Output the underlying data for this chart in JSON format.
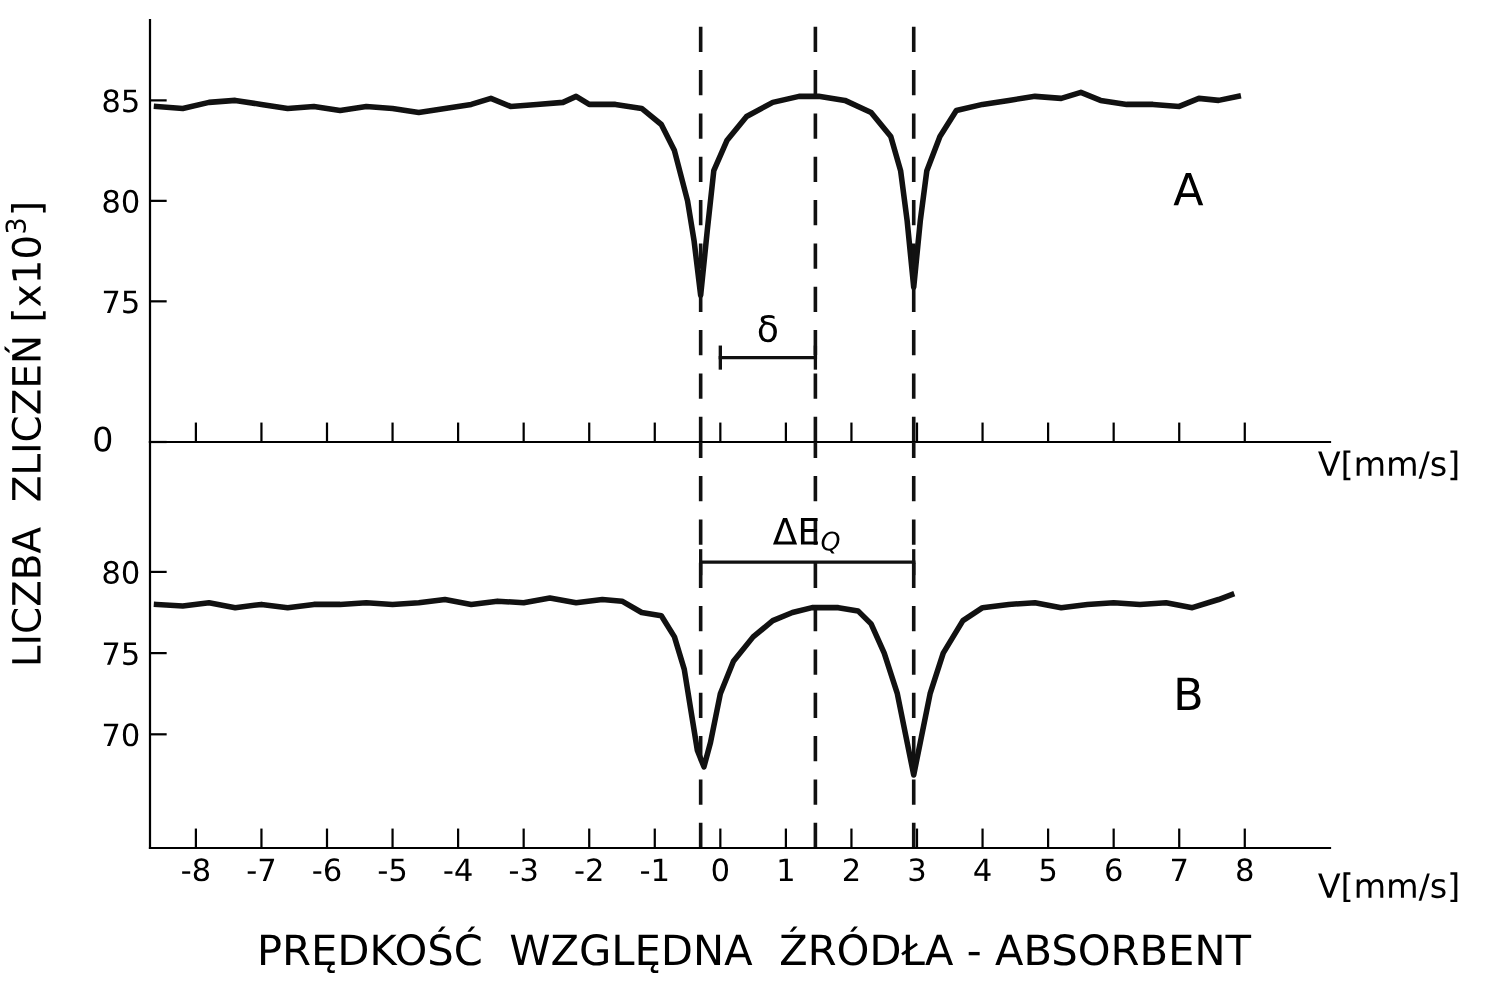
{
  "chart_data": [
    {
      "type": "line",
      "ylabel": "LICZBA  ZLICZEŃ [x10$^{3}$]",
      "xlabel": "V[mm/s]",
      "x": [
        -8.6,
        -8.2,
        -7.8,
        -7.4,
        -7.0,
        -6.6,
        -6.2,
        -5.8,
        -5.4,
        -5.0,
        -4.6,
        -4.2,
        -3.8,
        -3.5,
        -3.2,
        -2.8,
        -2.4,
        -2.2,
        -2.0,
        -1.6,
        -1.2,
        -0.9,
        -0.7,
        -0.5,
        -0.4,
        -0.3,
        -0.2,
        -0.1,
        0.1,
        0.4,
        0.8,
        1.2,
        1.5,
        1.9,
        2.3,
        2.6,
        2.75,
        2.85,
        2.95,
        3.05,
        3.15,
        3.35,
        3.6,
        4.0,
        4.4,
        4.8,
        5.2,
        5.5,
        5.8,
        6.2,
        6.6,
        7.0,
        7.3,
        7.6,
        7.9
      ],
      "series": [
        {
          "color": "#111111",
          "values": [
            84.7,
            84.6,
            84.9,
            85.0,
            84.8,
            84.6,
            84.7,
            84.5,
            84.7,
            84.6,
            84.4,
            84.6,
            84.8,
            85.1,
            84.7,
            84.8,
            84.9,
            85.2,
            84.8,
            84.8,
            84.6,
            83.8,
            82.5,
            80.0,
            78.0,
            75.3,
            78.5,
            81.5,
            83.0,
            84.2,
            84.9,
            85.2,
            85.2,
            85.0,
            84.4,
            83.2,
            81.5,
            79.0,
            75.7,
            79.0,
            81.5,
            83.2,
            84.5,
            84.8,
            85.0,
            85.2,
            85.1,
            85.4,
            85.0,
            84.8,
            84.8,
            84.7,
            85.1,
            85.0,
            85.2
          ]
        },
        {
          "name": "δ",
          "color": "#111111",
          "x": [
            0,
            1.45
          ],
          "values": [
            72.2,
            72.2
          ],
          "errors": [
            0.6,
            0.6
          ]
        }
      ],
      "xlim": [
        -8.7,
        9.3
      ],
      "xticks": [
        -8,
        -7,
        -6,
        -5,
        -4,
        -3,
        -2,
        -1,
        0,
        1,
        2,
        3,
        4,
        5,
        6,
        7,
        8
      ],
      "ylim": [
        68,
        89
      ],
      "yticks": [
        {
          "value": 68,
          "label": null
        },
        75,
        80,
        85
      ],
      "tick_labels": "y",
      "grid": false,
      "legend": false,
      "marker": "none",
      "line_style": "solid",
      "ref_lines": [
        {
          "axis": "x",
          "value": -0.3,
          "line_style": "dashed"
        },
        {
          "axis": "x",
          "value": 1.45,
          "line_style": "dashed"
        },
        {
          "axis": "x",
          "value": 2.95,
          "line_style": "dashed"
        }
      ],
      "annotations": [
        "A",
        "0"
      ]
    },
    {
      "type": "line",
      "xlabel": "V[mm/s]",
      "x": [
        -8.6,
        -8.2,
        -7.8,
        -7.4,
        -7.0,
        -6.6,
        -6.2,
        -5.8,
        -5.4,
        -5.0,
        -4.6,
        -4.2,
        -3.8,
        -3.4,
        -3.0,
        -2.6,
        -2.2,
        -1.8,
        -1.5,
        -1.2,
        -0.9,
        -0.7,
        -0.55,
        -0.45,
        -0.35,
        -0.25,
        -0.15,
        0.0,
        0.2,
        0.5,
        0.8,
        1.1,
        1.4,
        1.8,
        2.1,
        2.3,
        2.5,
        2.7,
        2.85,
        2.95,
        3.05,
        3.2,
        3.4,
        3.7,
        4.0,
        4.4,
        4.8,
        5.2,
        5.6,
        6.0,
        6.4,
        6.8,
        7.2,
        7.6,
        7.8
      ],
      "series": [
        {
          "color": "#111111",
          "values": [
            78.0,
            77.9,
            78.1,
            77.8,
            78.0,
            77.8,
            78.0,
            78.0,
            78.1,
            78.0,
            78.1,
            78.3,
            78.0,
            78.2,
            78.1,
            78.4,
            78.1,
            78.3,
            78.2,
            77.5,
            77.3,
            76.0,
            74.0,
            71.5,
            69.0,
            68.0,
            69.5,
            72.5,
            74.5,
            76.0,
            77.0,
            77.5,
            77.8,
            77.8,
            77.6,
            76.8,
            75.0,
            72.5,
            69.5,
            67.5,
            69.5,
            72.5,
            75.0,
            77.0,
            77.8,
            78.0,
            78.1,
            77.8,
            78.0,
            78.1,
            78.0,
            78.1,
            77.8,
            78.3,
            78.6
          ]
        },
        {
          "name": "ΔE$_{Q}$",
          "color": "#111111",
          "x": [
            -0.3,
            2.95
          ],
          "values": [
            80.6,
            80.6
          ],
          "errors": [
            0.8,
            0.8
          ]
        }
      ],
      "xlim": [
        -8.7,
        9.3
      ],
      "xticks": [
        -8,
        -7,
        -6,
        -5,
        -4,
        -3,
        -2,
        -1,
        0,
        1,
        2,
        3,
        4,
        5,
        6,
        7,
        8
      ],
      "ylim": [
        63,
        88
      ],
      "yticks": [
        70,
        75,
        80
      ],
      "grid": false,
      "legend": false,
      "marker": "none",
      "line_style": "solid",
      "ref_lines": [
        {
          "axis": "x",
          "value": -0.3,
          "line_style": "dashed"
        },
        {
          "axis": "x",
          "value": 1.45,
          "line_style": "dashed"
        },
        {
          "axis": "x",
          "value": 2.95,
          "line_style": "dashed"
        }
      ],
      "annotations": [
        "B",
        "PRĘDKOŚĆ  WZGLĘDNA  ŹRÓDŁA - ABSORBENT"
      ]
    }
  ]
}
